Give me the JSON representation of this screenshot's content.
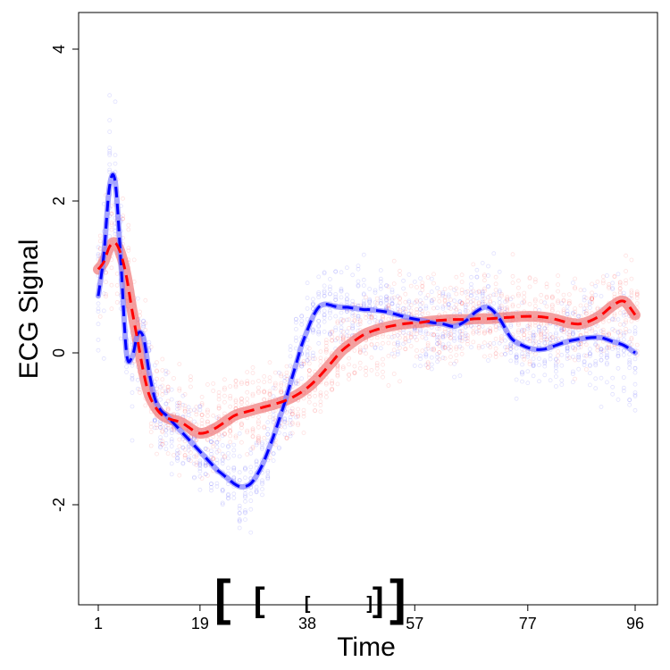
{
  "chart_data": {
    "type": "line",
    "title": "",
    "xlabel": "Time",
    "ylabel": "ECG Signal",
    "xlim": [
      1,
      96
    ],
    "ylim": [
      -3.3,
      4.5
    ],
    "x_ticks": [
      {
        "value": 1,
        "label": "1"
      },
      {
        "value": 19,
        "label": "19"
      },
      {
        "value": 38,
        "label": "38"
      },
      {
        "value": 57,
        "label": "57"
      },
      {
        "value": 77,
        "label": "77"
      },
      {
        "value": 96,
        "label": "96"
      }
    ],
    "y_ticks": [
      {
        "value": -2,
        "label": "-2"
      },
      {
        "value": 0,
        "label": "0"
      },
      {
        "value": 2,
        "label": "2"
      },
      {
        "value": 4,
        "label": "4"
      }
    ],
    "colors": {
      "series_a": "#0000ff",
      "series_b": "#ff0000",
      "band_b": "#f08080"
    },
    "series": [
      {
        "name": "blue mean",
        "color": "#0000ff",
        "x": [
          1,
          2,
          3,
          4,
          5,
          6,
          7,
          8,
          9,
          10,
          11,
          12,
          13,
          14,
          15,
          16,
          17,
          18,
          19,
          20,
          21,
          22,
          23,
          24,
          25,
          26,
          27,
          28,
          29,
          30,
          31,
          32,
          33,
          34,
          35,
          36,
          37,
          38,
          39,
          40,
          41,
          42,
          43,
          44,
          45,
          46,
          47,
          48,
          49,
          50,
          52,
          54,
          56,
          58,
          60,
          62,
          64,
          66,
          68,
          70,
          72,
          74,
          76,
          78,
          80,
          82,
          84,
          86,
          88,
          90,
          92,
          94,
          96
        ],
        "values": [
          0.75,
          1.3,
          2.2,
          2.25,
          1.2,
          0.0,
          -0.05,
          0.25,
          0.2,
          -0.25,
          -0.6,
          -0.75,
          -0.82,
          -0.9,
          -0.98,
          -1.06,
          -1.14,
          -1.22,
          -1.3,
          -1.38,
          -1.46,
          -1.54,
          -1.6,
          -1.66,
          -1.72,
          -1.76,
          -1.76,
          -1.72,
          -1.62,
          -1.48,
          -1.3,
          -1.1,
          -0.88,
          -0.65,
          -0.4,
          -0.15,
          0.1,
          0.3,
          0.48,
          0.6,
          0.64,
          0.63,
          0.61,
          0.6,
          0.6,
          0.59,
          0.58,
          0.57,
          0.57,
          0.56,
          0.54,
          0.5,
          0.46,
          0.43,
          0.4,
          0.38,
          0.35,
          0.42,
          0.55,
          0.6,
          0.45,
          0.2,
          0.1,
          0.05,
          0.05,
          0.1,
          0.15,
          0.18,
          0.2,
          0.2,
          0.15,
          0.1,
          0.0
        ]
      },
      {
        "name": "red mean",
        "color": "#ff0000",
        "x": [
          1,
          2,
          3,
          4,
          5,
          6,
          7,
          8,
          9,
          10,
          11,
          12,
          13,
          14,
          15,
          16,
          17,
          18,
          19,
          20,
          21,
          22,
          23,
          24,
          25,
          26,
          27,
          28,
          29,
          30,
          32,
          34,
          36,
          38,
          40,
          42,
          44,
          46,
          48,
          50,
          52,
          54,
          56,
          58,
          60,
          62,
          64,
          66,
          68,
          70,
          72,
          74,
          76,
          78,
          80,
          82,
          84,
          86,
          88,
          90,
          92,
          94,
          96
        ],
        "values": [
          1.1,
          1.2,
          1.4,
          1.45,
          1.3,
          1.0,
          0.55,
          0.15,
          -0.25,
          -0.55,
          -0.7,
          -0.8,
          -0.85,
          -0.88,
          -0.9,
          -0.93,
          -0.98,
          -1.03,
          -1.06,
          -1.05,
          -1.02,
          -0.98,
          -0.93,
          -0.88,
          -0.83,
          -0.8,
          -0.78,
          -0.76,
          -0.74,
          -0.72,
          -0.68,
          -0.63,
          -0.56,
          -0.46,
          -0.32,
          -0.15,
          0.02,
          0.14,
          0.24,
          0.3,
          0.34,
          0.37,
          0.39,
          0.4,
          0.42,
          0.43,
          0.44,
          0.44,
          0.45,
          0.45,
          0.46,
          0.47,
          0.48,
          0.48,
          0.47,
          0.44,
          0.4,
          0.38,
          0.42,
          0.5,
          0.62,
          0.68,
          0.5
        ]
      }
    ],
    "annotations": [
      {
        "text": "[",
        "x": 23,
        "size": "large"
      },
      {
        "text": "[",
        "x": 29.5,
        "size": "medium"
      },
      {
        "text": "[",
        "x": 38,
        "size": "small"
      },
      {
        "text": "]",
        "x": 49,
        "size": "small"
      },
      {
        "text": "]",
        "x": 50.5,
        "size": "medium"
      },
      {
        "text": "]",
        "x": 54,
        "size": "large"
      }
    ]
  }
}
